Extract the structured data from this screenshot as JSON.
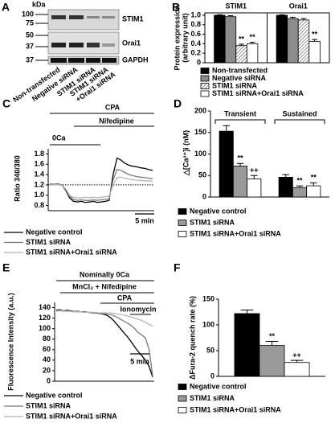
{
  "panel_labels": [
    "A",
    "B",
    "C",
    "D",
    "E",
    "F"
  ],
  "blot": {
    "unit": "kDa",
    "markers": [
      "100",
      "75",
      "50",
      "37",
      "37"
    ],
    "bands": [
      "STIM1",
      "Orai1",
      "GAPDH"
    ],
    "lanes": [
      [
        "Non-transfected"
      ],
      [
        "Negative siRNA"
      ],
      [
        "STIM1 siRNA"
      ],
      [
        "STIM1 siRNA",
        "+Orai1 siRNA"
      ]
    ]
  },
  "chart_data": [
    {
      "type": "bar",
      "y_label": [
        "Protein expression",
        "(arbitrary unit)"
      ],
      "categories": [
        "STIM1",
        "Orai1"
      ],
      "frame": true,
      "ylim": [
        0,
        1.05
      ],
      "yticks": [
        0,
        0.2,
        0.4,
        0.6,
        0.8,
        {
          "value": 1,
          "label": "1.0"
        }
      ],
      "series": [
        {
          "name": "Non-transfected",
          "color": "#000000",
          "values": [
            1,
            1
          ],
          "errors": [
            0.01,
            0.01
          ],
          "marks": [
            null,
            null
          ]
        },
        {
          "name": "Negative siRNA",
          "color": "#8c8c8c",
          "values": [
            0.97,
            0.93
          ],
          "errors": [
            0.02,
            0.03
          ],
          "marks": [
            null,
            null
          ]
        },
        {
          "name": "STIM1 siRNA",
          "color": "#ffffff",
          "pattern": "hatch",
          "values": [
            0.36,
            0.9
          ],
          "errors": [
            0.03,
            0.03
          ],
          "marks": [
            "**",
            null
          ]
        },
        {
          "name": "STIM1 siRNA+Orai1 siRNA",
          "color": "#ffffff",
          "values": [
            0.4,
            0.45
          ],
          "errors": [
            0.03,
            0.04
          ],
          "marks": [
            "**",
            "**"
          ]
        }
      ]
    },
    {
      "type": "line",
      "y_label": "Ratio 340/380",
      "annotations": [
        "0Ca",
        "CPA",
        "Nifedipine"
      ],
      "scale_bar": "5 min",
      "ylim": [
        0.7,
        1.9
      ],
      "yticks": [
        0.8,
        {
          "value": 1,
          "label": "1.0"
        },
        1.2,
        1.4,
        1.6,
        1.8
      ],
      "reference_line": 1.2,
      "series": [
        {
          "name": "Negative control",
          "color": "#000000",
          "values": [
            1.22,
            1.21,
            1.22,
            1.2,
            1.1,
            0.95,
            0.88,
            0.87,
            0.88,
            0.86,
            0.87,
            0.88,
            0.86,
            0.87,
            0.88,
            0.9,
            1.4,
            1.72,
            1.68,
            1.62,
            1.58,
            1.56,
            1.55,
            1.53,
            1.52,
            1.5,
            1.48
          ]
        },
        {
          "name": "STIM1 siRNA",
          "color": "#7a7a7a",
          "values": [
            1.22,
            1.21,
            1.21,
            1.2,
            1.12,
            0.98,
            0.92,
            0.9,
            0.91,
            0.9,
            0.9,
            0.91,
            0.9,
            0.91,
            0.92,
            0.93,
            1.3,
            1.5,
            1.48,
            1.44,
            1.4,
            1.38,
            1.36,
            1.35,
            1.34,
            1.33,
            1.32
          ]
        },
        {
          "name": "STIM1 siRNA+Orai1 siRNA",
          "color": "#b5b5b5",
          "values": [
            1.2,
            1.2,
            1.21,
            1.19,
            1.12,
            1,
            0.96,
            0.95,
            0.95,
            0.96,
            0.95,
            0.96,
            0.95,
            0.96,
            0.97,
            0.98,
            1.2,
            1.34,
            1.35,
            1.33,
            1.31,
            1.3,
            1.29,
            1.29,
            1.28,
            1.28,
            1.27
          ]
        }
      ]
    },
    {
      "type": "bar",
      "y_label": "△[Ca²⁺]i (nM)",
      "categories": [
        "Transient",
        "Sustained"
      ],
      "ylim": [
        0,
        200
      ],
      "yticks": [
        0,
        50,
        100,
        150,
        200
      ],
      "series": [
        {
          "name": "Negative control",
          "color": "#000000",
          "values": [
            153,
            46
          ],
          "errors": [
            13,
            6
          ],
          "marks": [
            null,
            null
          ]
        },
        {
          "name": "STIM1 siRNA",
          "color": "#9a9a9a",
          "values": [
            72,
            22
          ],
          "errors": [
            6,
            4
          ],
          "marks": [
            "**",
            "**"
          ]
        },
        {
          "name": "STIM1 siRNA+Orai1 siRNA",
          "color": "#ffffff",
          "values": [
            42,
            26
          ],
          "errors": [
            8,
            7
          ],
          "marks": [
            "++",
            "**"
          ]
        }
      ]
    },
    {
      "type": "line",
      "y_label": "Fluorescence Intensity (a.u.)",
      "annotations": [
        "Nominally 0Ca",
        "MnCl₂ + Nifedipine",
        "CPA",
        "Ionomycin"
      ],
      "scale_bar": "5 min",
      "ylim": [
        0,
        150
      ],
      "yticks": [
        0,
        20,
        40,
        60,
        80,
        100,
        120,
        140
      ],
      "series": [
        {
          "name": "Negative control",
          "color": "#000000",
          "values": [
            135,
            136,
            134,
            135,
            134,
            133,
            133,
            132,
            132,
            131,
            130,
            130,
            129,
            128,
            126,
            122,
            116,
            108,
            100,
            92,
            84,
            75,
            65,
            56,
            48,
            40,
            28,
            8
          ]
        },
        {
          "name": "STIM1 siRNA",
          "color": "#7a7a7a",
          "values": [
            134,
            135,
            134,
            134,
            133,
            133,
            132,
            132,
            131,
            131,
            130,
            130,
            130,
            129,
            128,
            127,
            125,
            122,
            118,
            114,
            110,
            106,
            100,
            92,
            88,
            82,
            60,
            10
          ]
        },
        {
          "name": "STIM1 siRNA+Orai1 siRNA",
          "color": "#b5b5b5",
          "values": [
            133,
            134,
            133,
            133,
            133,
            132,
            132,
            132,
            131,
            131,
            131,
            131,
            130,
            130,
            130,
            130,
            129,
            128,
            127,
            126,
            124,
            122,
            120,
            118,
            115,
            112,
            108,
            105
          ]
        }
      ]
    },
    {
      "type": "bar",
      "y_label": "ΔFura-2 quench rate (%)",
      "ylim": [
        0,
        150
      ],
      "yticks": [
        0,
        50,
        100,
        150
      ],
      "series": [
        {
          "name": "Negative control",
          "color": "#000000",
          "values": [
            122
          ],
          "errors": [
            7
          ],
          "marks": [
            null
          ]
        },
        {
          "name": "STIM1 siRNA",
          "color": "#9a9a9a",
          "values": [
            60
          ],
          "errors": [
            8
          ],
          "marks": [
            "**"
          ]
        },
        {
          "name": "STIM1 siRNA+Orai1 siRNA",
          "color": "#ffffff",
          "values": [
            27
          ],
          "errors": [
            4
          ],
          "marks": [
            "++"
          ]
        }
      ]
    }
  ]
}
